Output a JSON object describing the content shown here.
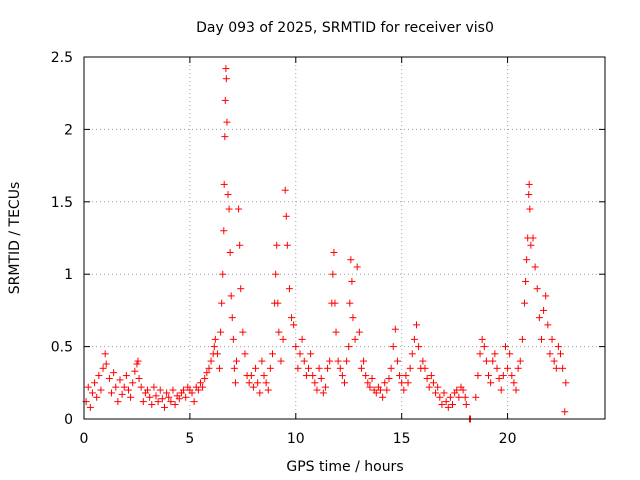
{
  "chart_data": {
    "type": "scatter",
    "title": "Day 093 of 2025, SRMTID for receiver vis0",
    "xlabel": "GPS time / hours",
    "ylabel": "SRMTID / TECUs",
    "xlim": [
      0,
      24.6
    ],
    "ylim": [
      0,
      2.5
    ],
    "xticks": [
      0,
      5,
      10,
      15,
      20
    ],
    "yticks": [
      0,
      0.5,
      1,
      1.5,
      2,
      2.5
    ],
    "xtick_labels": [
      "0",
      "5",
      "10",
      "15",
      "20"
    ],
    "ytick_labels": [
      "0",
      "0.5",
      "1",
      "1.5",
      "2",
      "2.5"
    ],
    "grid": true,
    "marker": "+",
    "color": "#ff0000",
    "series": [
      {
        "name": "vis0",
        "points": [
          [
            0.1,
            0.12
          ],
          [
            0.2,
            0.22
          ],
          [
            0.3,
            0.08
          ],
          [
            0.4,
            0.18
          ],
          [
            0.5,
            0.25
          ],
          [
            0.6,
            0.15
          ],
          [
            0.7,
            0.3
          ],
          [
            0.8,
            0.2
          ],
          [
            0.9,
            0.35
          ],
          [
            1.0,
            0.45
          ],
          [
            1.05,
            0.38
          ],
          [
            1.2,
            0.28
          ],
          [
            1.3,
            0.18
          ],
          [
            1.4,
            0.32
          ],
          [
            1.5,
            0.22
          ],
          [
            1.6,
            0.12
          ],
          [
            1.7,
            0.27
          ],
          [
            1.8,
            0.17
          ],
          [
            1.9,
            0.22
          ],
          [
            2.0,
            0.3
          ],
          [
            2.1,
            0.2
          ],
          [
            2.2,
            0.15
          ],
          [
            2.3,
            0.25
          ],
          [
            2.4,
            0.33
          ],
          [
            2.5,
            0.38
          ],
          [
            2.55,
            0.4
          ],
          [
            2.6,
            0.28
          ],
          [
            2.7,
            0.22
          ],
          [
            2.8,
            0.12
          ],
          [
            2.9,
            0.18
          ],
          [
            3.0,
            0.2
          ],
          [
            3.1,
            0.15
          ],
          [
            3.2,
            0.1
          ],
          [
            3.3,
            0.22
          ],
          [
            3.4,
            0.16
          ],
          [
            3.5,
            0.12
          ],
          [
            3.6,
            0.2
          ],
          [
            3.7,
            0.14
          ],
          [
            3.8,
            0.08
          ],
          [
            3.9,
            0.18
          ],
          [
            4.0,
            0.15
          ],
          [
            4.1,
            0.12
          ],
          [
            4.2,
            0.2
          ],
          [
            4.3,
            0.1
          ],
          [
            4.4,
            0.16
          ],
          [
            4.5,
            0.14
          ],
          [
            4.6,
            0.18
          ],
          [
            4.7,
            0.2
          ],
          [
            4.8,
            0.15
          ],
          [
            4.9,
            0.22
          ],
          [
            5.0,
            0.2
          ],
          [
            5.1,
            0.18
          ],
          [
            5.2,
            0.12
          ],
          [
            5.3,
            0.22
          ],
          [
            5.4,
            0.2
          ],
          [
            5.5,
            0.25
          ],
          [
            5.6,
            0.22
          ],
          [
            5.7,
            0.28
          ],
          [
            5.8,
            0.32
          ],
          [
            5.9,
            0.35
          ],
          [
            6.0,
            0.4
          ],
          [
            6.1,
            0.45
          ],
          [
            6.15,
            0.5
          ],
          [
            6.2,
            0.55
          ],
          [
            6.3,
            0.45
          ],
          [
            6.4,
            0.35
          ],
          [
            6.45,
            0.6
          ],
          [
            6.5,
            0.8
          ],
          [
            6.55,
            1.0
          ],
          [
            6.6,
            1.3
          ],
          [
            6.62,
            1.62
          ],
          [
            6.65,
            1.95
          ],
          [
            6.67,
            2.2
          ],
          [
            6.7,
            2.42
          ],
          [
            6.72,
            2.35
          ],
          [
            6.75,
            2.05
          ],
          [
            6.8,
            1.55
          ],
          [
            6.85,
            1.45
          ],
          [
            6.9,
            1.15
          ],
          [
            6.95,
            0.85
          ],
          [
            7.0,
            0.7
          ],
          [
            7.05,
            0.55
          ],
          [
            7.1,
            0.35
          ],
          [
            7.15,
            0.25
          ],
          [
            7.2,
            0.4
          ],
          [
            7.3,
            1.45
          ],
          [
            7.35,
            1.2
          ],
          [
            7.4,
            0.9
          ],
          [
            7.5,
            0.6
          ],
          [
            7.6,
            0.45
          ],
          [
            7.7,
            0.3
          ],
          [
            7.8,
            0.25
          ],
          [
            7.9,
            0.3
          ],
          [
            8.0,
            0.22
          ],
          [
            8.1,
            0.35
          ],
          [
            8.2,
            0.25
          ],
          [
            8.3,
            0.18
          ],
          [
            8.4,
            0.4
          ],
          [
            8.5,
            0.3
          ],
          [
            8.6,
            0.25
          ],
          [
            8.7,
            0.2
          ],
          [
            8.8,
            0.35
          ],
          [
            8.9,
            0.45
          ],
          [
            9.0,
            0.8
          ],
          [
            9.05,
            1.0
          ],
          [
            9.1,
            1.2
          ],
          [
            9.15,
            0.8
          ],
          [
            9.2,
            0.6
          ],
          [
            9.3,
            0.4
          ],
          [
            9.4,
            0.55
          ],
          [
            9.5,
            1.58
          ],
          [
            9.55,
            1.4
          ],
          [
            9.6,
            1.2
          ],
          [
            9.7,
            0.9
          ],
          [
            9.8,
            0.7
          ],
          [
            9.9,
            0.65
          ],
          [
            10.0,
            0.5
          ],
          [
            10.1,
            0.35
          ],
          [
            10.2,
            0.45
          ],
          [
            10.3,
            0.55
          ],
          [
            10.4,
            0.4
          ],
          [
            10.5,
            0.3
          ],
          [
            10.6,
            0.35
          ],
          [
            10.7,
            0.45
          ],
          [
            10.8,
            0.3
          ],
          [
            10.9,
            0.25
          ],
          [
            11.0,
            0.2
          ],
          [
            11.1,
            0.35
          ],
          [
            11.2,
            0.28
          ],
          [
            11.3,
            0.18
          ],
          [
            11.4,
            0.22
          ],
          [
            11.5,
            0.35
          ],
          [
            11.6,
            0.4
          ],
          [
            11.7,
            0.8
          ],
          [
            11.75,
            1.0
          ],
          [
            11.8,
            1.15
          ],
          [
            11.85,
            0.8
          ],
          [
            11.9,
            0.6
          ],
          [
            12.0,
            0.4
          ],
          [
            12.1,
            0.35
          ],
          [
            12.2,
            0.3
          ],
          [
            12.3,
            0.25
          ],
          [
            12.4,
            0.4
          ],
          [
            12.5,
            0.5
          ],
          [
            12.55,
            0.8
          ],
          [
            12.6,
            1.1
          ],
          [
            12.65,
            0.95
          ],
          [
            12.7,
            0.7
          ],
          [
            12.8,
            0.55
          ],
          [
            12.9,
            1.05
          ],
          [
            13.0,
            0.6
          ],
          [
            13.1,
            0.35
          ],
          [
            13.2,
            0.4
          ],
          [
            13.3,
            0.3
          ],
          [
            13.4,
            0.25
          ],
          [
            13.5,
            0.22
          ],
          [
            13.6,
            0.28
          ],
          [
            13.7,
            0.2
          ],
          [
            13.8,
            0.18
          ],
          [
            13.9,
            0.22
          ],
          [
            14.0,
            0.2
          ],
          [
            14.1,
            0.15
          ],
          [
            14.2,
            0.25
          ],
          [
            14.3,
            0.2
          ],
          [
            14.4,
            0.28
          ],
          [
            14.5,
            0.35
          ],
          [
            14.6,
            0.5
          ],
          [
            14.7,
            0.62
          ],
          [
            14.8,
            0.4
          ],
          [
            14.9,
            0.3
          ],
          [
            15.0,
            0.25
          ],
          [
            15.1,
            0.2
          ],
          [
            15.2,
            0.3
          ],
          [
            15.3,
            0.25
          ],
          [
            15.4,
            0.35
          ],
          [
            15.5,
            0.45
          ],
          [
            15.6,
            0.55
          ],
          [
            15.7,
            0.65
          ],
          [
            15.8,
            0.5
          ],
          [
            15.9,
            0.35
          ],
          [
            16.0,
            0.4
          ],
          [
            16.1,
            0.35
          ],
          [
            16.2,
            0.28
          ],
          [
            16.3,
            0.22
          ],
          [
            16.4,
            0.3
          ],
          [
            16.5,
            0.25
          ],
          [
            16.6,
            0.18
          ],
          [
            16.7,
            0.22
          ],
          [
            16.8,
            0.15
          ],
          [
            16.9,
            0.1
          ],
          [
            17.0,
            0.18
          ],
          [
            17.1,
            0.12
          ],
          [
            17.2,
            0.08
          ],
          [
            17.3,
            0.15
          ],
          [
            17.4,
            0.1
          ],
          [
            17.5,
            0.18
          ],
          [
            17.6,
            0.2
          ],
          [
            17.7,
            0.15
          ],
          [
            17.8,
            0.22
          ],
          [
            17.9,
            0.2
          ],
          [
            18.0,
            0.15
          ],
          [
            18.05,
            0.1
          ],
          [
            18.2,
            0.0
          ],
          [
            18.25,
            0.0
          ],
          [
            18.5,
            0.15
          ],
          [
            18.6,
            0.3
          ],
          [
            18.7,
            0.45
          ],
          [
            18.8,
            0.55
          ],
          [
            18.9,
            0.5
          ],
          [
            19.0,
            0.4
          ],
          [
            19.1,
            0.3
          ],
          [
            19.2,
            0.25
          ],
          [
            19.3,
            0.4
          ],
          [
            19.4,
            0.45
          ],
          [
            19.5,
            0.35
          ],
          [
            19.6,
            0.28
          ],
          [
            19.7,
            0.2
          ],
          [
            19.8,
            0.3
          ],
          [
            19.9,
            0.5
          ],
          [
            20.0,
            0.35
          ],
          [
            20.1,
            0.45
          ],
          [
            20.2,
            0.3
          ],
          [
            20.3,
            0.25
          ],
          [
            20.4,
            0.2
          ],
          [
            20.5,
            0.35
          ],
          [
            20.6,
            0.4
          ],
          [
            20.7,
            0.55
          ],
          [
            20.8,
            0.8
          ],
          [
            20.85,
            0.95
          ],
          [
            20.9,
            1.1
          ],
          [
            20.95,
            1.25
          ],
          [
            21.0,
            1.55
          ],
          [
            21.02,
            1.62
          ],
          [
            21.05,
            1.45
          ],
          [
            21.1,
            1.2
          ],
          [
            21.2,
            1.25
          ],
          [
            21.3,
            1.05
          ],
          [
            21.4,
            0.9
          ],
          [
            21.5,
            0.7
          ],
          [
            21.6,
            0.55
          ],
          [
            21.7,
            0.75
          ],
          [
            21.8,
            0.85
          ],
          [
            21.9,
            0.65
          ],
          [
            22.0,
            0.45
          ],
          [
            22.1,
            0.55
          ],
          [
            22.2,
            0.4
          ],
          [
            22.3,
            0.35
          ],
          [
            22.4,
            0.5
          ],
          [
            22.5,
            0.45
          ],
          [
            22.6,
            0.35
          ],
          [
            22.7,
            0.05
          ],
          [
            22.75,
            0.25
          ]
        ]
      }
    ]
  }
}
